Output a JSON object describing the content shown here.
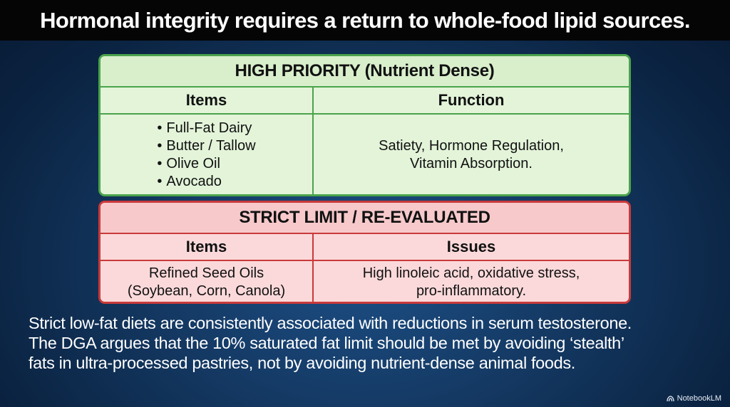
{
  "title": "Hormonal integrity requires a return to whole-food lipid sources.",
  "high_priority": {
    "heading": "HIGH PRIORITY (Nutrient Dense)",
    "col_items": "Items",
    "col_function": "Function",
    "items": [
      "Full-Fat Dairy",
      "Butter / Tallow",
      "Olive Oil",
      "Avocado"
    ],
    "function_line1": "Satiety, Hormone Regulation,",
    "function_line2": "Vitamin Absorption."
  },
  "strict_limit": {
    "heading": "STRICT LIMIT / RE-EVALUATED",
    "col_items": "Items",
    "col_issues": "Issues",
    "items_line1": "Refined Seed Oils",
    "items_line2": "(Soybean, Corn, Canola)",
    "issues_line1": "High linoleic acid, oxidative stress,",
    "issues_line2": "pro-inflammatory."
  },
  "caption": {
    "line1": "Strict low-fat diets are consistently associated with reductions in serum testosterone.",
    "line2": "The DGA argues that the 10% saturated fat limit should be met by avoiding ‘stealth’",
    "line3": "fats in ultra-processed pastries, not by avoiding nutrient-dense animal foods."
  },
  "brand": {
    "label": "NotebookLM",
    "icon": "notebooklm-logo-icon"
  }
}
